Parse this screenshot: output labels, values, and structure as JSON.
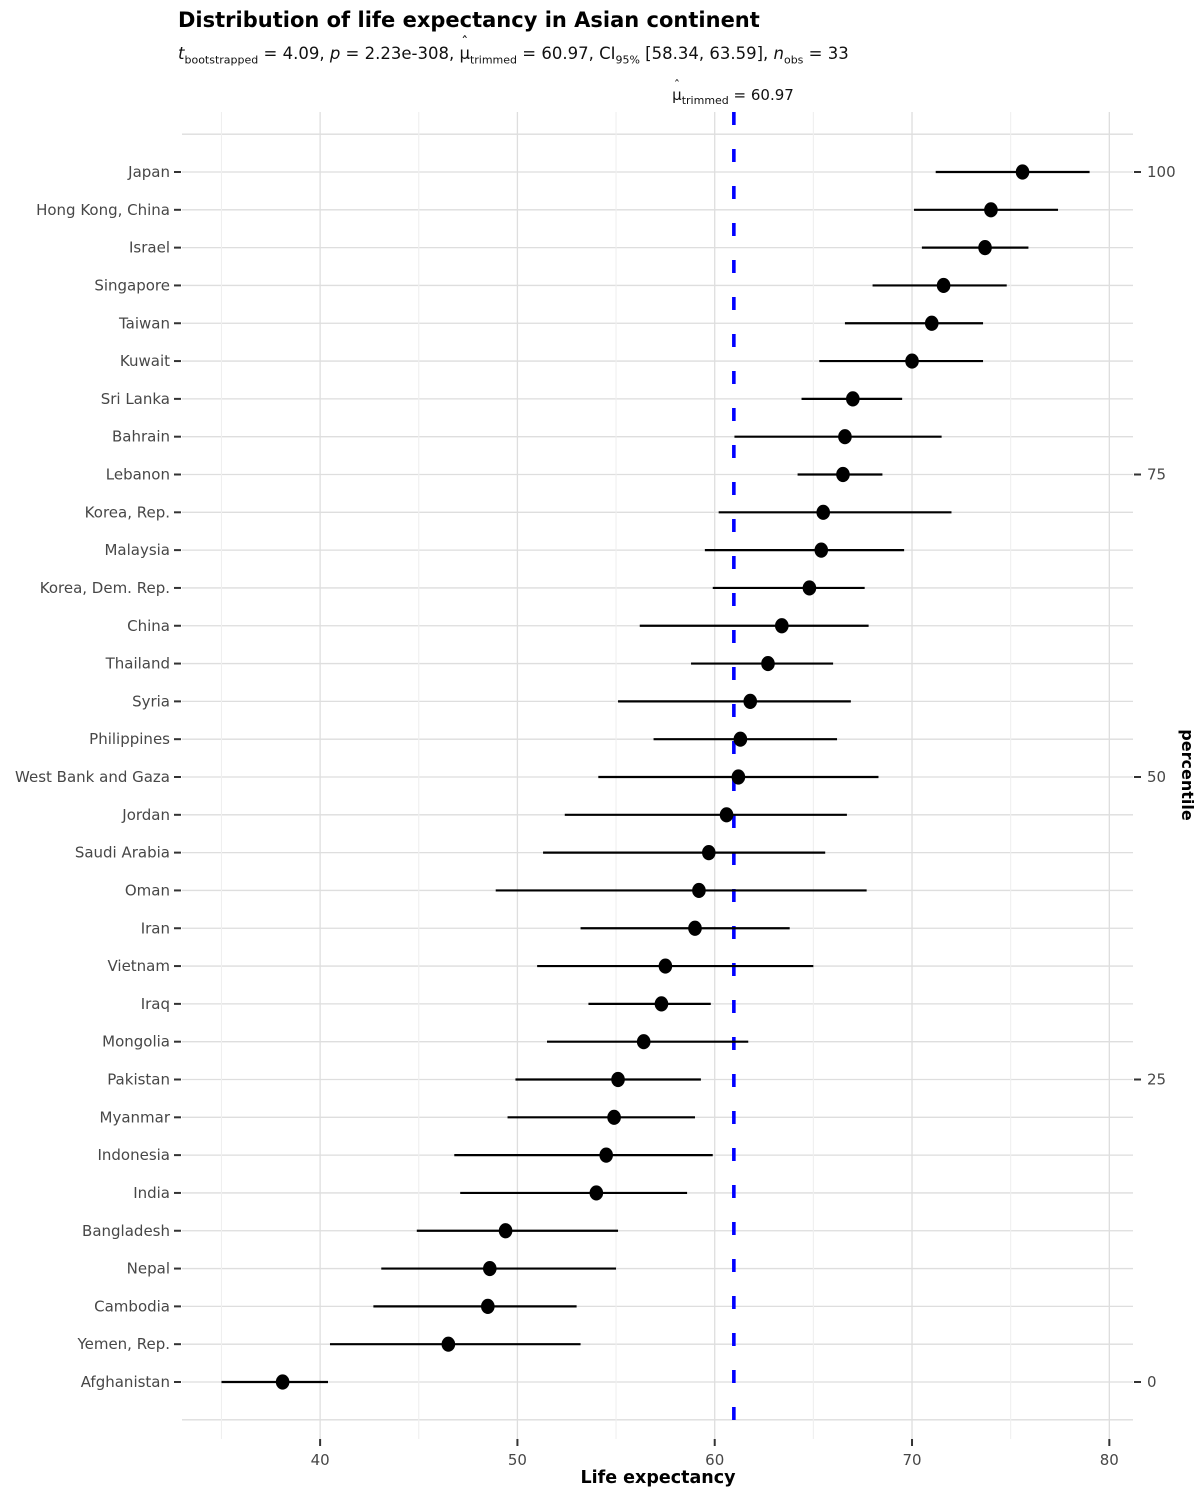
{
  "title": "Distribution of life expectancy in Asian continent",
  "subtitle_parts": [
    {
      "text": "t",
      "style": "italic"
    },
    {
      "text": "bootstrapped",
      "style": "sub"
    },
    {
      "text": " = 4.09, ",
      "style": "normal"
    },
    {
      "text": "p",
      "style": "italic"
    },
    {
      "text": " = 2.23e-308, ",
      "style": "normal"
    },
    {
      "text": "μ",
      "style": "hat"
    },
    {
      "text": "trimmed",
      "style": "sub"
    },
    {
      "text": " = 60.97, CI",
      "style": "normal"
    },
    {
      "text": "95%",
      "style": "sub"
    },
    {
      "text": " [58.34, 63.59], ",
      "style": "normal"
    },
    {
      "text": "n",
      "style": "italic"
    },
    {
      "text": "obs",
      "style": "sub"
    },
    {
      "text": " = 33",
      "style": "normal"
    }
  ],
  "chart_data": {
    "type": "scatter",
    "subtype": "dot-plot-with-ci",
    "title": "Distribution of life expectancy in Asian continent",
    "xlabel": "Life expectancy",
    "ylabel_right": "percentile",
    "x_ticks": [
      40,
      50,
      60,
      70,
      80
    ],
    "x_minor_ticks": [
      35,
      45,
      55,
      65,
      75
    ],
    "xlim": [
      33.0,
      81.2
    ],
    "grid": "on",
    "point_color": "#000000",
    "ci_line_color": "#000000",
    "test_line": {
      "value": 60.97,
      "color": "#0000FF",
      "label_parts": [
        {
          "text": "μ",
          "style": "hat"
        },
        {
          "text": "trimmed",
          "style": "sub"
        },
        {
          "text": " = 60.97",
          "style": "normal"
        }
      ]
    },
    "right_axis_ticks": [
      {
        "label": "100",
        "row": 0
      },
      {
        "label": "75",
        "row": 8
      },
      {
        "label": "50",
        "row": 16
      },
      {
        "label": "25",
        "row": 24
      },
      {
        "label": "0",
        "row": 32
      }
    ],
    "rows": [
      {
        "country": "Japan",
        "estimate": 75.6,
        "ci_low": 71.2,
        "ci_high": 79.0
      },
      {
        "country": "Hong Kong, China",
        "estimate": 74.0,
        "ci_low": 70.1,
        "ci_high": 77.4
      },
      {
        "country": "Israel",
        "estimate": 73.7,
        "ci_low": 70.5,
        "ci_high": 75.9
      },
      {
        "country": "Singapore",
        "estimate": 71.6,
        "ci_low": 68.0,
        "ci_high": 74.8
      },
      {
        "country": "Taiwan",
        "estimate": 71.0,
        "ci_low": 66.6,
        "ci_high": 73.6
      },
      {
        "country": "Kuwait",
        "estimate": 70.0,
        "ci_low": 65.3,
        "ci_high": 73.6
      },
      {
        "country": "Sri Lanka",
        "estimate": 67.0,
        "ci_low": 64.4,
        "ci_high": 69.5
      },
      {
        "country": "Bahrain",
        "estimate": 66.6,
        "ci_low": 61.0,
        "ci_high": 71.5
      },
      {
        "country": "Lebanon",
        "estimate": 66.5,
        "ci_low": 64.2,
        "ci_high": 68.5
      },
      {
        "country": "Korea, Rep.",
        "estimate": 65.5,
        "ci_low": 60.2,
        "ci_high": 72.0
      },
      {
        "country": "Malaysia",
        "estimate": 65.4,
        "ci_low": 59.5,
        "ci_high": 69.6
      },
      {
        "country": "Korea, Dem. Rep.",
        "estimate": 64.8,
        "ci_low": 59.9,
        "ci_high": 67.6
      },
      {
        "country": "China",
        "estimate": 63.4,
        "ci_low": 56.2,
        "ci_high": 67.8
      },
      {
        "country": "Thailand",
        "estimate": 62.7,
        "ci_low": 58.8,
        "ci_high": 66.0
      },
      {
        "country": "Syria",
        "estimate": 61.8,
        "ci_low": 55.1,
        "ci_high": 66.9
      },
      {
        "country": "Philippines",
        "estimate": 61.3,
        "ci_low": 56.9,
        "ci_high": 66.2
      },
      {
        "country": "West Bank and Gaza",
        "estimate": 61.2,
        "ci_low": 54.1,
        "ci_high": 68.3
      },
      {
        "country": "Jordan",
        "estimate": 60.6,
        "ci_low": 52.4,
        "ci_high": 66.7
      },
      {
        "country": "Saudi Arabia",
        "estimate": 59.7,
        "ci_low": 51.3,
        "ci_high": 65.6
      },
      {
        "country": "Oman",
        "estimate": 59.2,
        "ci_low": 48.9,
        "ci_high": 67.7
      },
      {
        "country": "Iran",
        "estimate": 59.0,
        "ci_low": 53.2,
        "ci_high": 63.8
      },
      {
        "country": "Vietnam",
        "estimate": 57.5,
        "ci_low": 51.0,
        "ci_high": 65.0
      },
      {
        "country": "Iraq",
        "estimate": 57.3,
        "ci_low": 53.6,
        "ci_high": 59.8
      },
      {
        "country": "Mongolia",
        "estimate": 56.4,
        "ci_low": 51.5,
        "ci_high": 61.7
      },
      {
        "country": "Pakistan",
        "estimate": 55.1,
        "ci_low": 49.9,
        "ci_high": 59.3
      },
      {
        "country": "Myanmar",
        "estimate": 54.9,
        "ci_low": 49.5,
        "ci_high": 59.0
      },
      {
        "country": "Indonesia",
        "estimate": 54.5,
        "ci_low": 46.8,
        "ci_high": 59.9
      },
      {
        "country": "India",
        "estimate": 54.0,
        "ci_low": 47.1,
        "ci_high": 58.6
      },
      {
        "country": "Bangladesh",
        "estimate": 49.4,
        "ci_low": 44.9,
        "ci_high": 55.1
      },
      {
        "country": "Nepal",
        "estimate": 48.6,
        "ci_low": 43.1,
        "ci_high": 55.0
      },
      {
        "country": "Cambodia",
        "estimate": 48.5,
        "ci_low": 42.7,
        "ci_high": 53.0
      },
      {
        "country": "Yemen, Rep.",
        "estimate": 46.5,
        "ci_low": 40.5,
        "ci_high": 53.2
      },
      {
        "country": "Afghanistan",
        "estimate": 38.1,
        "ci_low": 35.0,
        "ci_high": 40.4
      }
    ]
  },
  "colors": {
    "grid_major": "#dedede",
    "grid_minor": "#efefef",
    "axis_text": "#474747",
    "tick_mark": "#333333"
  }
}
